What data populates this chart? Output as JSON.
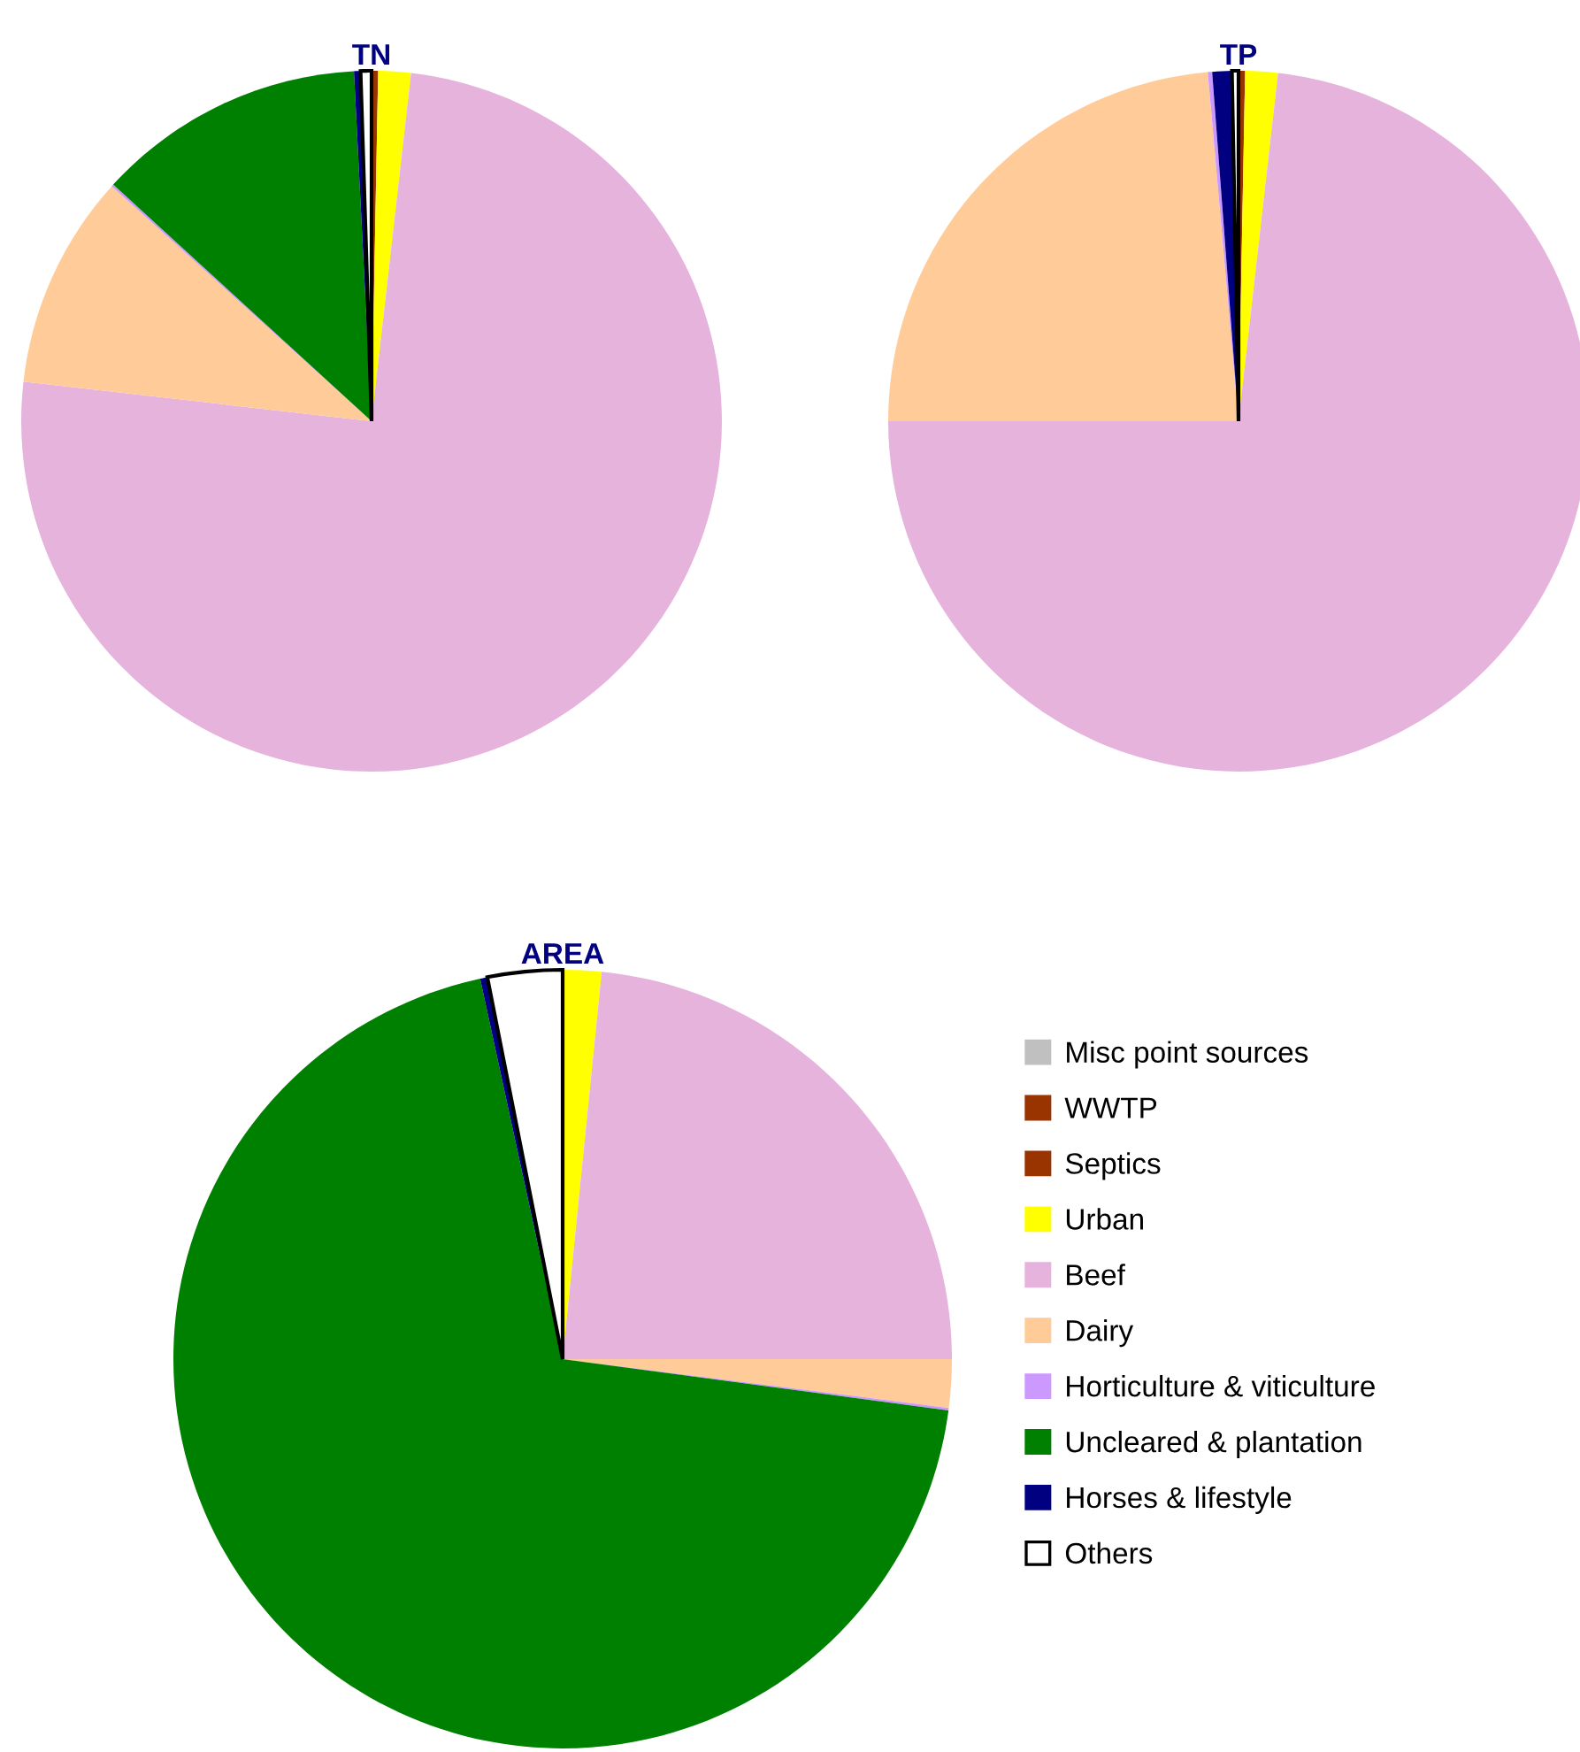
{
  "chart_data": [
    {
      "type": "pie",
      "title": "TN",
      "categories": [
        "Misc point sources",
        "WWTP",
        "Septics",
        "Urban",
        "Beef",
        "Dairy",
        "Horticulture & viticulture",
        "Uncleared & plantation",
        "Horses & lifestyle",
        "Others"
      ],
      "values": [
        0,
        0,
        0.3,
        1.5,
        75.0,
        9.9,
        0.1,
        12.4,
        0.3,
        0.5
      ],
      "colors": [
        "#c0c0c0",
        "#993300",
        "#993300",
        "#ffff00",
        "#e6b3dd",
        "#ffcc99",
        "#cc99ff",
        "#008000",
        "#000080",
        "#ffffff"
      ],
      "legend": "right"
    },
    {
      "type": "pie",
      "title": "TP",
      "categories": [
        null,
        null,
        null,
        null,
        null,
        null,
        null,
        null,
        null,
        null
      ],
      "values": [
        0,
        0,
        0.3,
        1.5,
        73.2,
        23.6,
        0.2,
        0,
        0.9,
        0.3
      ],
      "colors": [
        "#c0c0c0",
        "#993300",
        "#993300",
        "#ffff00",
        "#e6b3dd",
        "#ffcc99",
        "#cc99ff",
        "#008000",
        "#000080",
        "#ffffff"
      ],
      "legend": false
    },
    {
      "type": "pie",
      "title": "AREA",
      "categories": [
        null,
        null,
        null,
        null,
        null,
        null,
        null,
        null,
        null,
        null
      ],
      "values": [
        0,
        0,
        0,
        1.6,
        23.4,
        2.0,
        0.1,
        69.5,
        0.3,
        3.1
      ],
      "colors": [
        "#c0c0c0",
        "#993300",
        "#993300",
        "#ffff00",
        "#e6b3dd",
        "#ffcc99",
        "#cc99ff",
        "#008000",
        "#000080",
        "#ffffff"
      ],
      "legend": false
    }
  ]
}
